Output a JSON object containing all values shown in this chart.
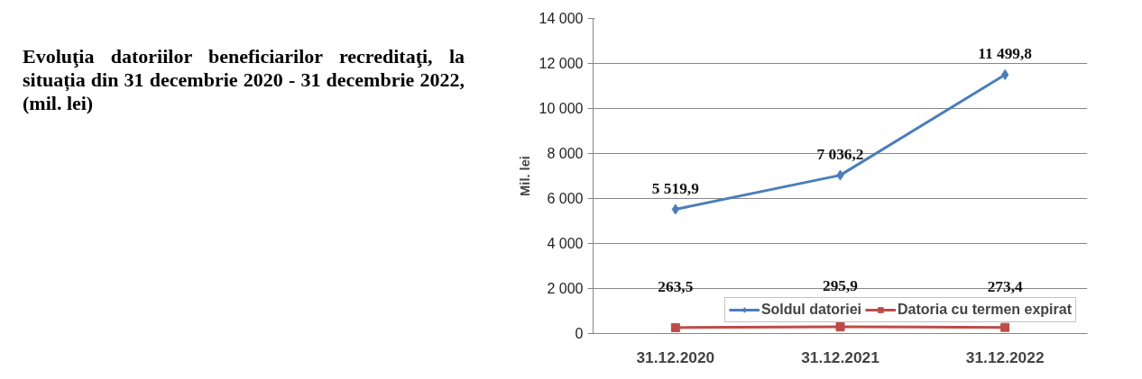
{
  "chart_data": {
    "type": "line",
    "title": "Evoluţia datoriilor beneficiarilor recreditaţi, la situația din 31 decembrie 2020 - 31 decembrie 2022, (mil. lei)",
    "ylabel": "Mil. lei",
    "categories": [
      "31.12.2020",
      "31.12.2021",
      "31.12.2022"
    ],
    "series": [
      {
        "name": "Soldul datoriei",
        "color": "#4a7ebb",
        "marker": "diamond",
        "values": [
          5519.9,
          7036.2,
          11499.8
        ],
        "value_labels": [
          "5 519,9",
          "7 036,2",
          "11 499,8"
        ]
      },
      {
        "name": "Datoria cu termen expirat",
        "color": "#be4b48",
        "marker": "square",
        "values": [
          263.5,
          295.9,
          273.4
        ],
        "value_labels": [
          "263,5",
          "295,9",
          "273,4"
        ]
      }
    ],
    "ylim": [
      0,
      14000
    ],
    "yticks": [
      {
        "value": 0,
        "label": "0"
      },
      {
        "value": 2000,
        "label": "2 000"
      },
      {
        "value": 4000,
        "label": "4 000"
      },
      {
        "value": 6000,
        "label": "6 000"
      },
      {
        "value": 8000,
        "label": "8 000"
      },
      {
        "value": 10000,
        "label": "10 000"
      },
      {
        "value": 12000,
        "label": "12 000"
      },
      {
        "value": 14000,
        "label": "14 000"
      }
    ],
    "grid": "y",
    "legend": "bottom"
  }
}
